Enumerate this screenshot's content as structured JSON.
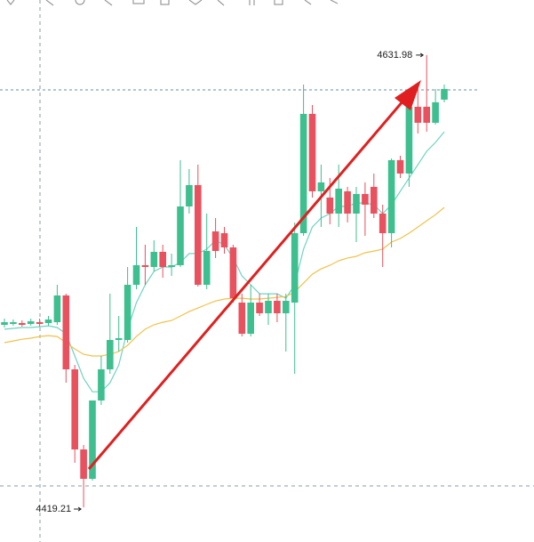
{
  "chart_data": {
    "type": "candlestick",
    "open": [
      4505.07,
      4505.49,
      4505.91,
      4505.49,
      4506.32,
      4505.91,
      4506.32,
      4518.89,
      4484.13,
      4446.44,
      4432.62,
      4469.47,
      4484.13,
      4497.95,
      4497.95,
      4523.91,
      4533.13,
      4532.29,
      4539.41,
      4532.29,
      4533.13,
      4560.77,
      4570.82,
      4523.91,
      4549.04,
      4548.2,
      4541.5,
      4515.54,
      4500.88,
      4515.54,
      4510.51,
      4516.38,
      4510.51,
      4515.54,
      4548.2,
      4604.32,
      4567.89,
      4564.96,
      4557.42,
      4567.89,
      4557.42,
      4566.63,
      4569.98,
      4557.42,
      4548.2,
      4582.55,
      4576.26,
      4607.67,
      4607.67,
      4600.14,
      4611.02
    ],
    "high": [
      4508.0,
      4507.58,
      4507.16,
      4508.0,
      4508.0,
      4509.26,
      4523.91,
      4519.73,
      4486.22,
      4448.53,
      4469.47,
      4490.41,
      4519.73,
      4509.26,
      4532.29,
      4551.14,
      4542.76,
      4544.85,
      4542.76,
      4538.57,
      4582.55,
      4578.36,
      4580.45,
      4557.42,
      4555.32,
      4551.14,
      4542.76,
      4519.73,
      4523.91,
      4519.73,
      4519.73,
      4519.73,
      4519.73,
      4553.23,
      4618.14,
      4608.51,
      4580.45,
      4574.17,
      4580.45,
      4569.98,
      4569.98,
      4572.08,
      4576.26,
      4561.61,
      4583.38,
      4584.64,
      4609.77,
      4618.14,
      4631.98,
      4616.05,
      4618.14
    ],
    "low": [
      4503.81,
      4504.65,
      4504.23,
      4504.65,
      4504.23,
      4504.65,
      4505.07,
      4477.85,
      4440.15,
      4419.21,
      4431.78,
      4467.38,
      4482.03,
      4492.5,
      4496.69,
      4521.82,
      4523.91,
      4530.2,
      4527.26,
      4528.1,
      4532.29,
      4557.42,
      4523.08,
      4521.82,
      4536.48,
      4538.57,
      4515.54,
      4499.62,
      4499.62,
      4509.26,
      4505.07,
      4506.32,
      4492.5,
      4482.03,
      4546.95,
      4564.96,
      4551.14,
      4552.39,
      4551.14,
      4553.23,
      4544.02,
      4546.95,
      4555.32,
      4532.29,
      4541.5,
      4574.17,
      4569.98,
      4595.11,
      4595.95,
      4599.3,
      4609.77
    ],
    "close": [
      4506.32,
      4506.32,
      4505.07,
      4506.74,
      4505.49,
      4507.58,
      4518.89,
      4484.13,
      4446.44,
      4432.62,
      4469.47,
      4484.13,
      4497.95,
      4498.79,
      4523.91,
      4533.13,
      4532.29,
      4539.41,
      4532.29,
      4533.13,
      4560.77,
      4570.82,
      4523.91,
      4539.83,
      4539.83,
      4541.5,
      4517.63,
      4500.88,
      4515.54,
      4510.51,
      4516.38,
      4510.51,
      4516.38,
      4548.2,
      4604.32,
      4567.89,
      4572.08,
      4557.42,
      4569.14,
      4557.42,
      4566.63,
      4561.61,
      4557.42,
      4548.2,
      4582.55,
      4576.26,
      4607.67,
      4600.14,
      4600.14,
      4609.77,
      4616.05
    ],
    "up_color": "#3dbf8f",
    "down_color": "#e8515d",
    "series": [
      {
        "color": "#6fd3c2",
        "values": [
          4503.0,
          4503.4,
          4503.8,
          4503.8,
          4504.2,
          4504.6,
          4503.8,
          4500.9,
          4490.4,
          4479.9,
          4473.6,
          4473.6,
          4477.8,
          4486.2,
          4503.0,
          4515.5,
          4523.9,
          4530.2,
          4532.3,
          4532.3,
          4534.4,
          4538.6,
          4538.6,
          4540.7,
          4544.8,
          4542.7,
          4536.5,
          4528.1,
          4523.9,
          4519.7,
          4519.7,
          4519.7,
          4517.6,
          4523.9,
          4540.7,
          4551.1,
          4555.3,
          4557.4,
          4560.8,
          4560.8,
          4562.4,
          4562.4,
          4561.6,
          4557.4,
          4561.6,
          4567.9,
          4574.1,
          4580.4,
          4586.7,
          4590.9,
          4595.9
        ]
      },
      {
        "color": "#f0c24a",
        "values": [
          4496.7,
          4497.5,
          4498.3,
          4498.8,
          4499.6,
          4500.0,
          4499.6,
          4496.7,
          4493.7,
          4491.2,
          4490.4,
          4490.4,
          4491.2,
          4492.5,
          4495.4,
          4499.6,
          4503.0,
          4505.1,
          4506.3,
          4507.1,
          4509.2,
          4511.3,
          4513.0,
          4514.7,
          4516.3,
          4517.2,
          4517.6,
          4517.6,
          4517.2,
          4517.2,
          4517.6,
          4518.0,
          4518.4,
          4520.5,
          4524.7,
          4528.9,
          4531.4,
          4533.1,
          4535.2,
          4536.5,
          4537.3,
          4539.0,
          4539.8,
          4540.7,
          4544.0,
          4545.7,
          4548.2,
          4551.1,
          4554.0,
          4556.9,
          4560.3
        ]
      }
    ],
    "ylim": [
      4402.9,
      4657.9
    ],
    "max_label": 4631.98,
    "min_label": 4419.21
  }
}
